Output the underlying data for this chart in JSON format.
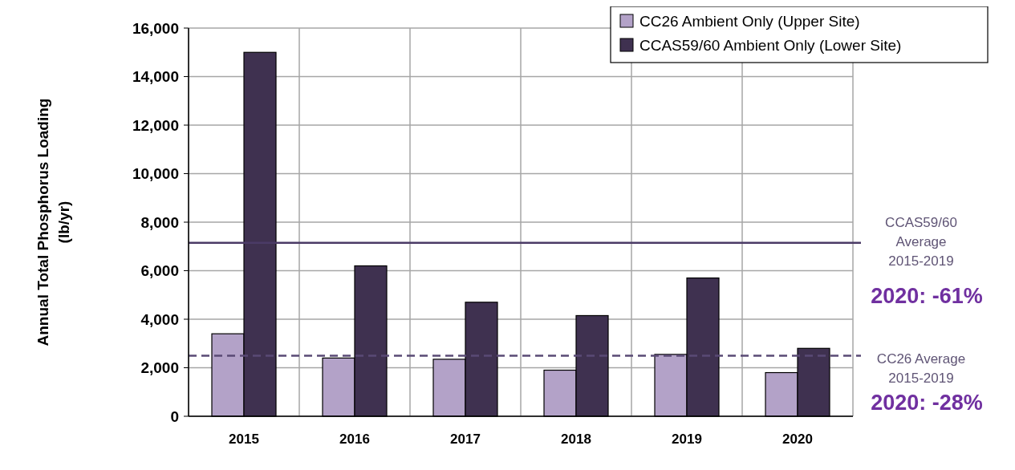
{
  "chart_data": {
    "type": "bar",
    "ylabel": "Annual Total Phosphorus Loading\n(lb/yr)",
    "categories": [
      "2015",
      "2016",
      "2017",
      "2018",
      "2019",
      "2020"
    ],
    "series": [
      {
        "name": "CC26 Ambient Only (Upper Site)",
        "color": "#b3a2c8",
        "values": [
          3400,
          2400,
          2350,
          1900,
          2550,
          1800
        ]
      },
      {
        "name": "CCAS59/60 Ambient Only (Lower Site)",
        "color": "#3f3150",
        "values": [
          15000,
          6200,
          4700,
          4150,
          5700,
          2800
        ]
      }
    ],
    "ylim": [
      0,
      16000
    ],
    "yticks": [
      {
        "value": 0,
        "label": "0"
      },
      {
        "value": 2000,
        "label": "2,000"
      },
      {
        "value": 4000,
        "label": "4,000"
      },
      {
        "value": 6000,
        "label": "6,000"
      },
      {
        "value": 8000,
        "label": "8,000"
      },
      {
        "value": 10000,
        "label": "10,000"
      },
      {
        "value": 12000,
        "label": "12,000"
      },
      {
        "value": 14000,
        "label": "14,000"
      },
      {
        "value": 16000,
        "label": "16,000"
      }
    ],
    "grid": true,
    "legend": "top right",
    "ref_lines": [
      {
        "axis": "y",
        "value": 7150,
        "label": "CCAS59/60\nAverage\n2015-2019",
        "color": "#4b3b66",
        "line_style": "solid"
      },
      {
        "axis": "y",
        "value": 2500,
        "label": "CC26 Average\n2015-2019",
        "color": "#5a4a75",
        "line_style": "dashed"
      }
    ],
    "annotations": [
      "2020: -61%",
      "2020: -28%"
    ]
  }
}
